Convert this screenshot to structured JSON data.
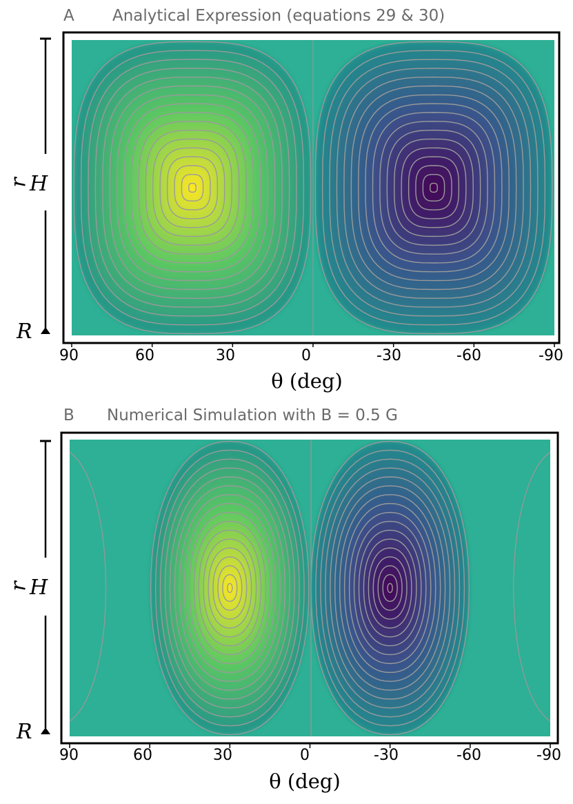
{
  "chart_data": [
    {
      "type": "heatmap",
      "panel_letter": "A",
      "title": "Analytical Expression (equations 29 & 30)",
      "xlabel": "θ (deg)",
      "ylabel": "r",
      "xticks": [
        "90",
        "60",
        "30",
        "0",
        "-30",
        "-60",
        "-90"
      ],
      "xlim": [
        90,
        -90
      ],
      "y_axis_labels": {
        "top": "H",
        "bottom": "R"
      },
      "colormap": [
        "#440154",
        "#3b528b",
        "#21918c",
        "#5ec962",
        "#fde725"
      ],
      "contour_color": "#9a9a9a",
      "field": {
        "form": "sin(2θ)·sin(π r)",
        "peak_theta": 45,
        "trough_theta": -45,
        "shape_power": 3
      }
    },
    {
      "type": "heatmap",
      "panel_letter": "B",
      "title": "Numerical Simulation with B = 0.5 G",
      "xlabel": "θ (deg)",
      "ylabel": "r",
      "xticks": [
        "90",
        "60",
        "30",
        "0",
        "-30",
        "-60",
        "-90"
      ],
      "xlim": [
        90,
        -90
      ],
      "y_axis_labels": {
        "top": "H",
        "bottom": "R"
      },
      "colormap": [
        "#440154",
        "#3b528b",
        "#21918c",
        "#5ec962",
        "#fde725"
      ],
      "contour_color": "#9a9a9a",
      "field": {
        "form": "narrowed sin(2θ)·sin(π r)",
        "peak_theta": 30,
        "trough_theta": -30,
        "shape_power": 2.2
      }
    }
  ]
}
